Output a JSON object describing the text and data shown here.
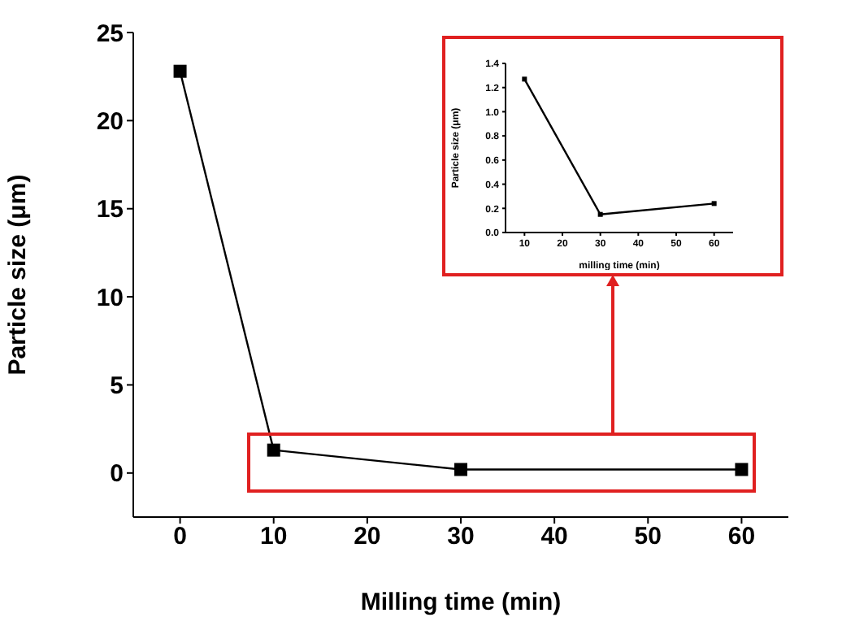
{
  "chart_data": [
    {
      "type": "line",
      "xlabel": "Milling time (min)",
      "ylabel": "Particle size (μm)",
      "x": [
        0,
        10,
        30,
        60
      ],
      "values": [
        22.8,
        1.3,
        0.2,
        0.2
      ],
      "color": "#000000",
      "marker": "square",
      "xlim": [
        -5,
        65
      ],
      "xticks": [
        0,
        10,
        20,
        30,
        40,
        50,
        60
      ],
      "ylim": [
        -2.5,
        25
      ],
      "yticks": [
        0,
        5,
        10,
        15,
        20,
        25
      ],
      "grid": false,
      "legend": false
    },
    {
      "type": "line",
      "xlabel": "milling time (min)",
      "ylabel": "Particle size (μm)",
      "x": [
        10,
        30,
        60
      ],
      "values": [
        1.27,
        0.15,
        0.24
      ],
      "color": "#000000",
      "marker": "square",
      "xlim": [
        5,
        65
      ],
      "xticks": [
        10,
        20,
        30,
        40,
        50,
        60
      ],
      "ylim": [
        0,
        1.4
      ],
      "yticks": [
        {
          "value": 0,
          "label": "0.0"
        },
        0.2,
        0.4,
        0.6,
        0.8,
        {
          "value": 1,
          "label": "1.0"
        },
        1.2,
        1.4
      ],
      "grid": false,
      "legend": false
    }
  ]
}
